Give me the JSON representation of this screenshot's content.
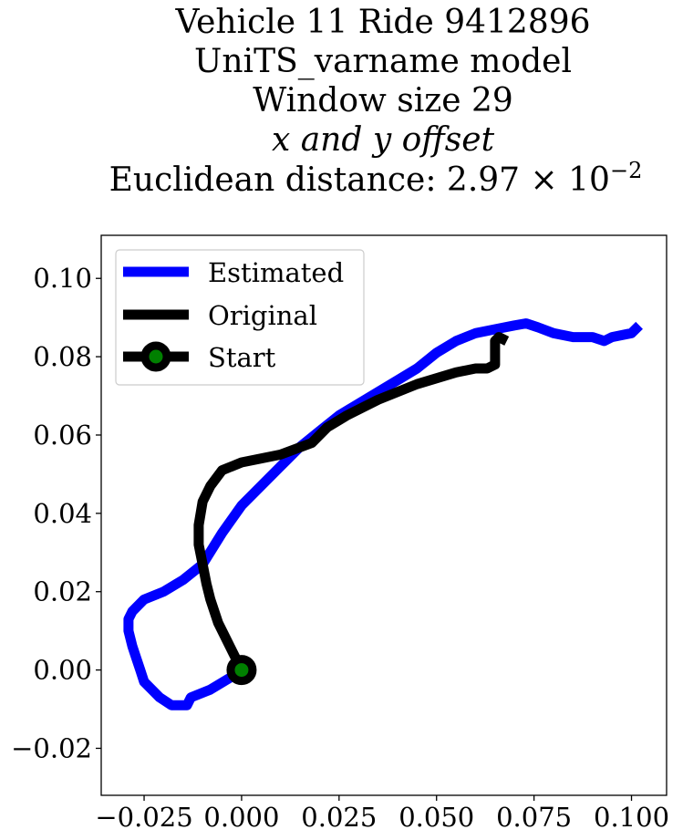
{
  "chart_data": {
    "type": "line",
    "title_lines": [
      "Vehicle 11 Ride 9412896",
      "UniTS_varname model",
      "Window size 29",
      "x and y offset",
      "Euclidean distance: 2.97 × 10"
    ],
    "title_exponent": "−2",
    "xlim": [
      -0.036,
      0.109
    ],
    "ylim": [
      -0.032,
      0.111
    ],
    "x_ticks": [
      -0.025,
      0.0,
      0.025,
      0.05,
      0.075,
      0.1
    ],
    "x_tick_labels": [
      "−0.025",
      "0.000",
      "0.025",
      "0.050",
      "0.075",
      "0.100"
    ],
    "y_ticks": [
      -0.02,
      0.0,
      0.02,
      0.04,
      0.06,
      0.08,
      0.1
    ],
    "y_tick_labels": [
      "−0.02",
      "0.00",
      "0.02",
      "0.04",
      "0.06",
      "0.08",
      "0.10"
    ],
    "grid": false,
    "legend_position": "top-left",
    "legend": [
      "Estimated",
      "Original",
      "Start"
    ],
    "colors": {
      "estimated": "#0000ff",
      "original": "#000000",
      "start_marker": "#008000"
    },
    "series": [
      {
        "name": "Estimated",
        "x": [
          0.0,
          -0.003,
          -0.008,
          -0.013,
          -0.014,
          -0.017,
          -0.018,
          -0.021,
          -0.025,
          -0.026,
          -0.027,
          -0.028,
          -0.029,
          -0.029,
          -0.028,
          -0.025,
          -0.02,
          -0.015,
          -0.01,
          -0.005,
          0.0,
          0.005,
          0.01,
          0.015,
          0.02,
          0.025,
          0.03,
          0.035,
          0.04,
          0.045,
          0.05,
          0.055,
          0.06,
          0.065,
          0.07,
          0.073,
          0.076,
          0.08,
          0.085,
          0.09,
          0.093,
          0.095,
          0.1,
          0.102
        ],
        "y": [
          0.0,
          -0.002,
          -0.005,
          -0.007,
          -0.009,
          -0.009,
          -0.009,
          -0.007,
          -0.003,
          0.0,
          0.003,
          0.006,
          0.01,
          0.013,
          0.015,
          0.018,
          0.02,
          0.023,
          0.027,
          0.035,
          0.042,
          0.047,
          0.052,
          0.057,
          0.061,
          0.065,
          0.068,
          0.071,
          0.074,
          0.077,
          0.081,
          0.084,
          0.086,
          0.087,
          0.088,
          0.0885,
          0.0875,
          0.086,
          0.085,
          0.085,
          0.084,
          0.085,
          0.086,
          0.088
        ]
      },
      {
        "name": "Original",
        "x": [
          0.0,
          -0.003,
          -0.006,
          -0.008,
          -0.009,
          -0.01,
          -0.011,
          -0.011,
          -0.01,
          -0.008,
          -0.005,
          0.0,
          0.01,
          0.018,
          0.022,
          0.027,
          0.035,
          0.045,
          0.055,
          0.06,
          0.063,
          0.065,
          0.065,
          0.065,
          0.066,
          0.068
        ],
        "y": [
          0.0,
          0.006,
          0.012,
          0.018,
          0.022,
          0.027,
          0.032,
          0.037,
          0.043,
          0.047,
          0.051,
          0.053,
          0.055,
          0.058,
          0.062,
          0.065,
          0.069,
          0.073,
          0.076,
          0.077,
          0.077,
          0.078,
          0.081,
          0.084,
          0.085,
          0.084
        ]
      },
      {
        "name": "Start",
        "x": [
          0.0
        ],
        "y": [
          0.0
        ]
      }
    ]
  }
}
